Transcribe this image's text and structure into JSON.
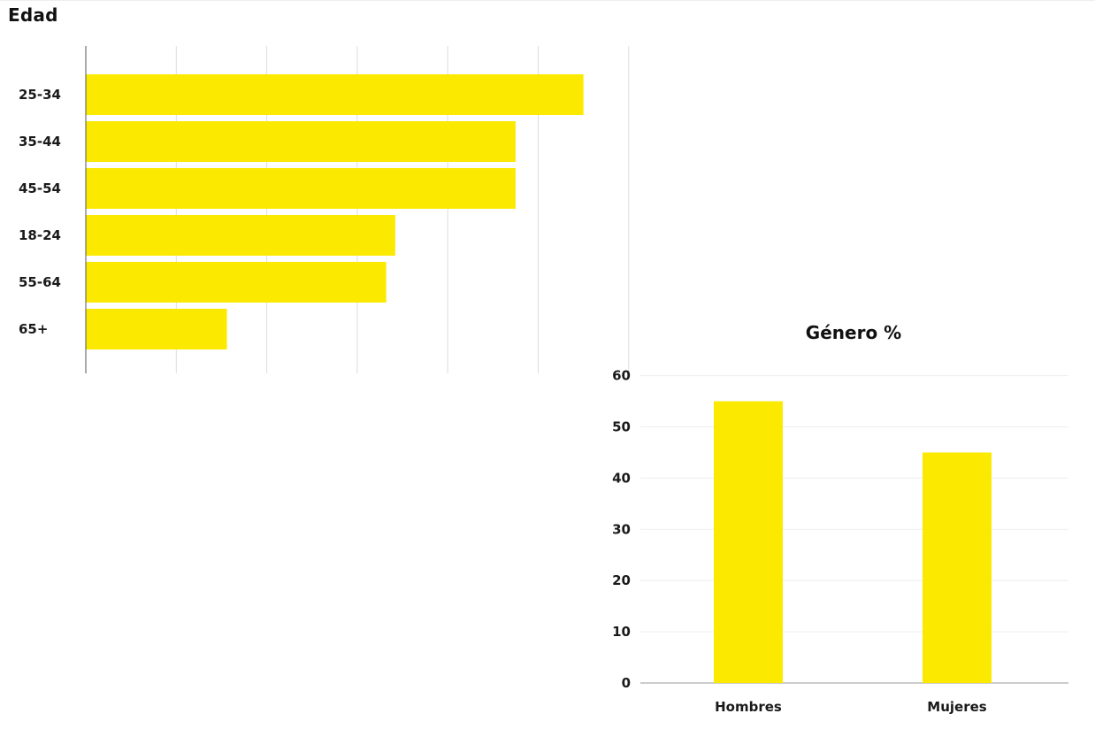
{
  "chart_data": [
    {
      "type": "bar",
      "orientation": "horizontal",
      "title": "Edad",
      "categories": [
        "25-34",
        "35-44",
        "45-54",
        "18-24",
        "55-64",
        "65+"
      ],
      "values": [
        5.5,
        4.75,
        4.75,
        3.42,
        3.32,
        1.56
      ],
      "xlim": [
        0,
        6
      ],
      "grid": "vertical",
      "color": "#FBEA00"
    },
    {
      "type": "bar",
      "orientation": "vertical",
      "title": "Género %",
      "categories": [
        "Hombres",
        "Mujeres"
      ],
      "values": [
        55,
        45
      ],
      "ylim": [
        0,
        60
      ],
      "yticks": [
        0,
        10,
        20,
        30,
        40,
        50,
        60
      ],
      "grid": "horizontal",
      "color": "#FBEA00"
    }
  ]
}
